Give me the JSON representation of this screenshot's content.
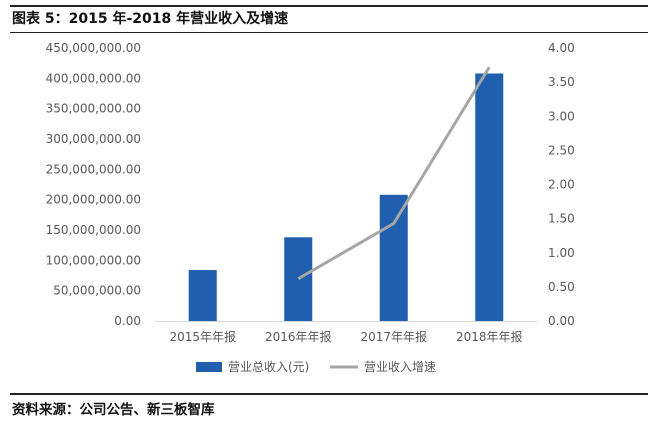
{
  "figure": {
    "title": "图表 5：2015 年-2018 年营业收入及增速",
    "source": "资料来源：公司公告、新三板智库"
  },
  "chart_data": {
    "type": "bar",
    "categories": [
      "2015年年报",
      "2016年年报",
      "2017年年报",
      "2018年年报"
    ],
    "series": [
      {
        "name": "营业总收入(元)",
        "kind": "bar",
        "axis": "left",
        "color": "#1F5FAD",
        "values": [
          84000000,
          138000000,
          208000000,
          408000000
        ]
      },
      {
        "name": "营业收入增速",
        "kind": "line",
        "axis": "right",
        "color": "#A6A6A6",
        "values": [
          null,
          0.62,
          1.43,
          3.72
        ]
      }
    ],
    "y_left": {
      "ylim": [
        0,
        450000000
      ],
      "tick_labels": [
        "0.00",
        "50,000,000.00",
        "100,000,000.00",
        "150,000,000.00",
        "200,000,000.00",
        "250,000,000.00",
        "300,000,000.00",
        "350,000,000.00",
        "400,000,000.00",
        "450,000,000.00"
      ]
    },
    "y_right": {
      "ylim": [
        0,
        4
      ],
      "tick_labels": [
        "0.00",
        "0.50",
        "1.00",
        "1.50",
        "2.00",
        "2.50",
        "3.00",
        "3.50",
        "4.00"
      ]
    },
    "grid": false,
    "legend_position": "bottom"
  }
}
